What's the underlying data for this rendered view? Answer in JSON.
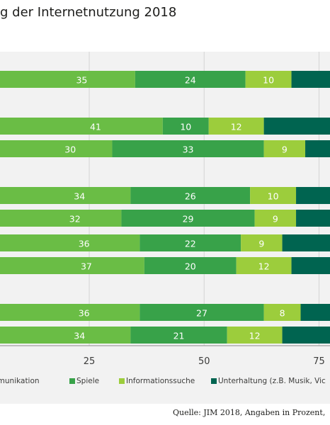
{
  "title": "g der Internetnutzung 2018",
  "source": "Quelle: JIM 2018, Angaben in Prozent,",
  "colors": {
    "panel": "#f2f2f2",
    "grid": "#d4d4d4",
    "axis": "#8a8a8a"
  },
  "chart_data": {
    "type": "bar",
    "orientation": "horizontal",
    "stacked": true,
    "title": "g der Internetnutzung 2018",
    "xlim": [
      0,
      82
    ],
    "x_ticks": [
      25,
      50,
      75
    ],
    "grid": true,
    "legend_position": "bottom",
    "series": [
      {
        "name": "nmunikation",
        "color": "#6abd45",
        "values": [
          35,
          41,
          30,
          34,
          32,
          36,
          37,
          36,
          34
        ]
      },
      {
        "name": "Spiele",
        "color": "#38a249",
        "values": [
          24,
          10,
          33,
          26,
          29,
          22,
          20,
          27,
          21
        ]
      },
      {
        "name": "Informationssuche",
        "color": "#9ccd3c",
        "values": [
          10,
          12,
          9,
          10,
          9,
          9,
          12,
          8,
          12
        ]
      },
      {
        "name": "Unterhaltung (z.B. Musik, Vic",
        "color": "#006450",
        "values": [
          null,
          null,
          null,
          null,
          null,
          null,
          null,
          null,
          null
        ]
      }
    ]
  }
}
